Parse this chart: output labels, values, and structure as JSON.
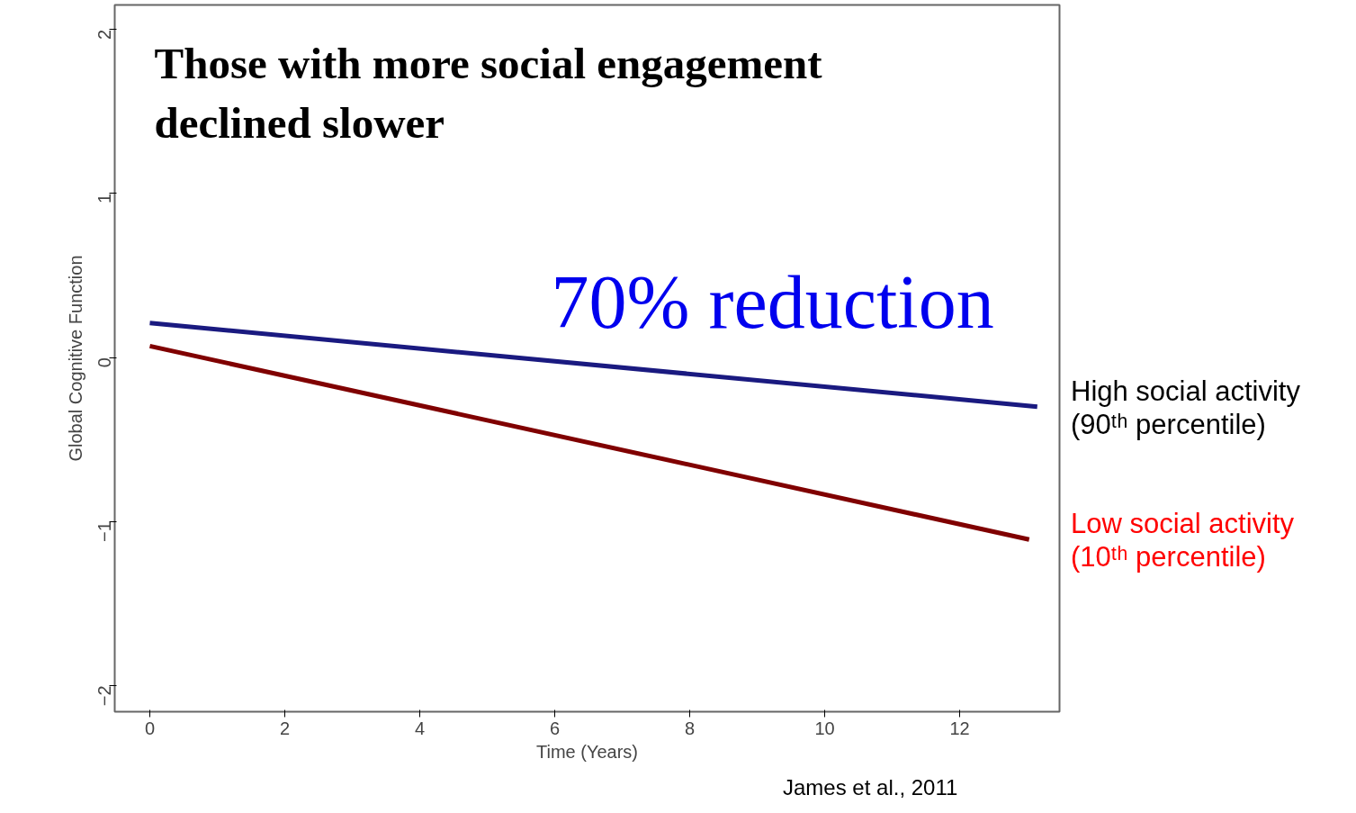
{
  "chart_data": {
    "type": "line",
    "xlabel": "Time (Years)",
    "ylabel": "Global Cognitive Function",
    "xlim": [
      -0.52,
      13.48
    ],
    "ylim": [
      -2.16,
      2.15
    ],
    "xticks": [
      0,
      2,
      4,
      6,
      8,
      10,
      12
    ],
    "yticks": [
      -2,
      -1,
      0,
      1,
      2
    ],
    "grid": false,
    "marker": "none",
    "line_style": "solid",
    "series": [
      {
        "name": "High social activity\n(90ᵗʰ percentile)",
        "color": "#1a1a80",
        "x": [
          0,
          13.15
        ],
        "values": [
          0.21,
          -0.3
        ]
      },
      {
        "name": "Low social activity\n(10ᵗʰ percentile)",
        "color": "#800000",
        "x": [
          0,
          13.03
        ],
        "values": [
          0.07,
          -1.11
        ]
      }
    ],
    "annotations": [
      "Those with more social engagement\ndeclined slower",
      "70% reduction",
      "James et al., 2011"
    ]
  }
}
